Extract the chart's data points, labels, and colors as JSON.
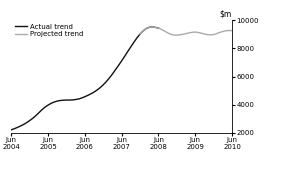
{
  "legend_actual": "Actual trend",
  "legend_projected": "Projected trend",
  "actual_color": "#111111",
  "projected_color": "#aaaaaa",
  "ylim": [
    2000,
    10000
  ],
  "yticks": [
    2000,
    4000,
    6000,
    8000,
    10000
  ],
  "xtick_labels": [
    "Jun\n2004",
    "Jun\n2005",
    "Jun\n2006",
    "Jun\n2007",
    "Jun\n2008",
    "Jun\n2009",
    "Jun\n2010"
  ],
  "xtick_positions": [
    0,
    12,
    24,
    36,
    48,
    60,
    72
  ],
  "actual_x": [
    0,
    1,
    2,
    3,
    4,
    5,
    6,
    7,
    8,
    9,
    10,
    11,
    12,
    13,
    14,
    15,
    16,
    17,
    18,
    19,
    20,
    21,
    22,
    23,
    24,
    25,
    26,
    27,
    28,
    29,
    30,
    31,
    32,
    33,
    34,
    35,
    36,
    37,
    38,
    39,
    40,
    41,
    42,
    43,
    44,
    45,
    46,
    47,
    48
  ],
  "actual_y": [
    2200,
    2280,
    2370,
    2470,
    2580,
    2710,
    2860,
    3020,
    3210,
    3420,
    3630,
    3820,
    3960,
    4090,
    4180,
    4250,
    4290,
    4310,
    4320,
    4320,
    4330,
    4360,
    4400,
    4470,
    4560,
    4660,
    4770,
    4890,
    5040,
    5210,
    5410,
    5640,
    5900,
    6180,
    6490,
    6800,
    7120,
    7450,
    7790,
    8120,
    8450,
    8760,
    9030,
    9250,
    9420,
    9510,
    9530,
    9500,
    9450
  ],
  "projected_x": [
    42,
    43,
    44,
    45,
    46,
    47,
    48,
    49,
    50,
    51,
    52,
    53,
    54,
    55,
    56,
    57,
    58,
    59,
    60,
    61,
    62,
    63,
    64,
    65,
    66,
    67,
    68,
    69,
    70,
    71,
    72
  ],
  "projected_y": [
    9030,
    9250,
    9420,
    9510,
    9530,
    9500,
    9450,
    9360,
    9240,
    9110,
    9010,
    8960,
    8950,
    8970,
    9010,
    9060,
    9110,
    9150,
    9170,
    9140,
    9090,
    9030,
    8980,
    8970,
    8990,
    9060,
    9140,
    9210,
    9260,
    9280,
    9270
  ]
}
